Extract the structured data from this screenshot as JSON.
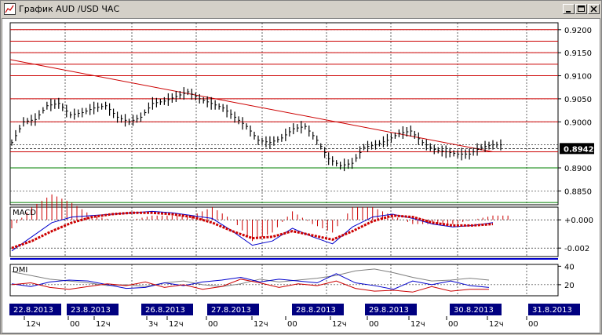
{
  "window": {
    "title": "График AUD /USD  ЧАС",
    "icon": "chart-icon",
    "buttons": [
      "minimize-icon",
      "maximize-icon",
      "close-icon"
    ]
  },
  "price_panel": {
    "y_ticks": [
      "0.9200",
      "0.9150",
      "0.9100",
      "0.9050",
      "0.9000",
      "0.8900",
      "0.8850"
    ],
    "current_price_label": "0.8942"
  },
  "macd_panel": {
    "label": "MACD",
    "y_ticks": [
      "+0.000",
      "-0.002"
    ]
  },
  "dmi_panel": {
    "label": "DMI",
    "y_ticks": [
      "40",
      "20"
    ]
  },
  "x_axis": {
    "date_labels": [
      "22.8.2013",
      "23.8.2013",
      "26.8.2013",
      "27.8.2013",
      "28.8.2013",
      "29.8.2013",
      "30.8.2013",
      "31.8.2013"
    ],
    "hour_labels": [
      "12ч",
      "00",
      "12ч",
      "3ч",
      "12ч",
      "00",
      "12ч",
      "00",
      "12ч",
      "00",
      "12ч",
      "00",
      "12ч",
      "00"
    ]
  },
  "colors": {
    "background": "#ffffff",
    "price_bars": "#000000",
    "resistance_lines": "#cc0000",
    "support_lines": "#008000",
    "macd_line": "#0000cc",
    "macd_signal": "#cc0000",
    "dmi_plus": "#0000cc",
    "dmi_minus": "#cc0000",
    "adx": "#808080",
    "date_label_bg": "#000080",
    "current_price_bg": "#000000"
  },
  "chart_data": {
    "type": "line",
    "title": "График AUD /USD  ЧАС",
    "x_dates": [
      "22.8.2013",
      "23.8.2013",
      "26.8.2013",
      "27.8.2013",
      "28.8.2013",
      "29.8.2013",
      "30.8.2013",
      "31.8.2013"
    ],
    "price_ylim": [
      0.882,
      0.9215
    ],
    "horizontal_levels_red": [
      0.92,
      0.9175,
      0.915,
      0.9125,
      0.91,
      0.905,
      0.9,
      0.8935
    ],
    "horizontal_levels_green": [
      0.89,
      0.8825
    ],
    "last_price": 0.8942,
    "trendline": {
      "from": 0.9135,
      "to": 0.8935
    },
    "price_series": [
      0.8955,
      0.9,
      0.9005,
      0.9035,
      0.904,
      0.9015,
      0.902,
      0.903,
      0.9035,
      0.901,
      0.9,
      0.901,
      0.904,
      0.9045,
      0.9055,
      0.9065,
      0.905,
      0.904,
      0.903,
      0.901,
      0.899,
      0.896,
      0.8955,
      0.8965,
      0.8985,
      0.899,
      0.896,
      0.892,
      0.8905,
      0.891,
      0.8945,
      0.895,
      0.896,
      0.8975,
      0.898,
      0.8955,
      0.894,
      0.8935,
      0.893,
      0.893,
      0.8945,
      0.895
    ],
    "macd_ylim": [
      -0.0026,
      0.0009
    ],
    "macd_series": [
      -0.0022,
      -0.0012,
      -0.0002,
      0.0002,
      0.0003,
      0.0004,
      0.0005,
      0.0006,
      0.0005,
      0.0003,
      0.0001,
      -0.0008,
      -0.0018,
      -0.0015,
      -0.0006,
      -0.0012,
      -0.0017,
      -0.0005,
      0.0002,
      0.0004,
      0.0001,
      -0.0003,
      -0.0005,
      -0.0004,
      -0.0002
    ],
    "macd_signal_series": [
      -0.002,
      -0.0015,
      -0.0008,
      -0.0002,
      0.0002,
      0.0004,
      0.0005,
      0.0005,
      0.0004,
      0.0002,
      -0.0002,
      -0.0008,
      -0.0013,
      -0.0012,
      -0.0008,
      -0.0011,
      -0.0014,
      -0.0008,
      -0.0001,
      0.0003,
      0.0002,
      -0.0002,
      -0.0004,
      -0.0004,
      -0.0003
    ],
    "dmi_ylim": [
      8,
      42
    ],
    "dmi_plus_series": [
      21,
      18,
      23,
      25,
      24,
      20,
      16,
      17,
      22,
      19,
      23,
      25,
      28,
      23,
      26,
      24,
      22,
      32,
      22,
      19,
      15,
      24,
      20,
      24,
      19,
      17
    ],
    "dmi_minus_series": [
      20,
      22,
      17,
      15,
      18,
      21,
      19,
      23,
      17,
      20,
      15,
      18,
      26,
      22,
      17,
      21,
      19,
      24,
      16,
      13,
      14,
      12,
      18,
      13,
      15,
      15
    ],
    "adx_series": [
      34,
      30,
      26,
      24,
      22,
      19,
      20,
      18,
      22,
      24,
      20,
      18,
      21,
      26,
      23,
      25,
      27,
      30,
      35,
      37,
      33,
      28,
      24,
      25,
      27,
      25
    ]
  }
}
